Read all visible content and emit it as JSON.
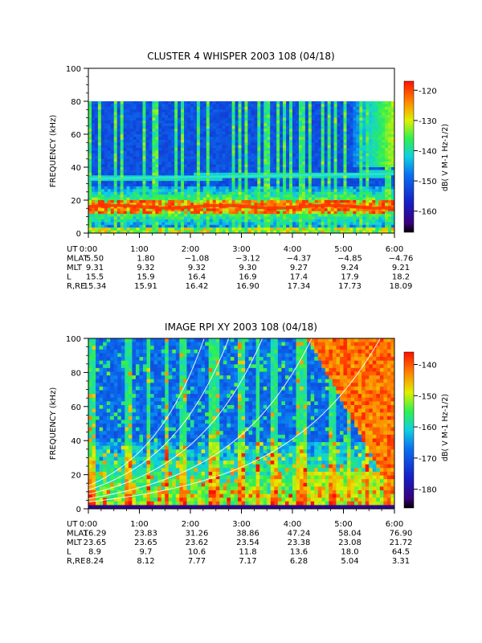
{
  "chart_data": [
    {
      "type": "heatmap",
      "title": "CLUSTER 4 WHISPER 2003 108 (04/18)",
      "ylabel": "FREQUENCY (kHz)",
      "ylim": [
        0,
        100
      ],
      "yticks": [
        "0",
        "20",
        "40",
        "60",
        "80",
        "100"
      ],
      "data_ymax": 80,
      "xlim": [
        "0:00",
        "6:00"
      ],
      "colorbar": {
        "label": "dB( V M⁻¹ Hz⁻¹ᐟ²)",
        "label_text": "dB( V M-1 Hz-1/2)",
        "range": [
          -167,
          -117
        ],
        "ticks": [
          "-120",
          "-130",
          "-140",
          "-150",
          "-160"
        ]
      },
      "bands": [
        {
          "kind": "emission-band",
          "freq_khz": 16
        },
        {
          "kind": "emission-band",
          "freq_khz": 33
        }
      ],
      "table": {
        "row_labels": [
          "UT",
          "MLAT",
          "MLT",
          "L",
          "R,RE"
        ],
        "columns": [
          [
            "0:00",
            "5.50",
            "9.31",
            "15.5",
            "15.34"
          ],
          [
            "1:00",
            "1.80",
            "9.32",
            "15.9",
            "15.91"
          ],
          [
            "2:00",
            "−1.08",
            "9.32",
            "16.4",
            "16.42"
          ],
          [
            "3:00",
            "−3.12",
            "9.30",
            "16.9",
            "16.90"
          ],
          [
            "4:00",
            "−4.37",
            "9.27",
            "17.4",
            "17.34"
          ],
          [
            "5:00",
            "−4.85",
            "9.24",
            "17.9",
            "17.73"
          ],
          [
            "6:00",
            "−4.76",
            "9.21",
            "18.2",
            "18.09"
          ]
        ]
      }
    },
    {
      "type": "heatmap",
      "title": "IMAGE RPI XY 2003 108 (04/18)",
      "ylabel": "FREQUENCY (kHz)",
      "ylim": [
        0,
        100
      ],
      "yticks": [
        "0",
        "20",
        "40",
        "60",
        "80",
        "100"
      ],
      "xlim": [
        "0:00",
        "6:00"
      ],
      "colorbar": {
        "label": "dB( V M⁻¹ Hz⁻¹ᐟ²)",
        "label_text": "dB( V M-1 Hz-1/2)",
        "range": [
          -186,
          -136
        ],
        "ticks": [
          "-140",
          "-150",
          "-160",
          "-170",
          "-180"
        ]
      },
      "overlay": "white plasma-frequency curves",
      "table": {
        "row_labels": [
          "UT",
          "MLAT",
          "MLT",
          "L",
          "R,RE"
        ],
        "columns": [
          [
            "0:00",
            "16.29",
            "23.65",
            "8.9",
            "8.24"
          ],
          [
            "1:00",
            "23.83",
            "23.65",
            "9.7",
            "8.12"
          ],
          [
            "2:00",
            "31.26",
            "23.62",
            "10.6",
            "7.77"
          ],
          [
            "3:00",
            "38.86",
            "23.54",
            "11.8",
            "7.17"
          ],
          [
            "4:00",
            "47.24",
            "23.38",
            "13.6",
            "6.28"
          ],
          [
            "5:00",
            "58.04",
            "23.08",
            "18.0",
            "5.04"
          ],
          [
            "6:00",
            "76.90",
            "21.72",
            "64.5",
            "3.31"
          ]
        ]
      }
    }
  ]
}
